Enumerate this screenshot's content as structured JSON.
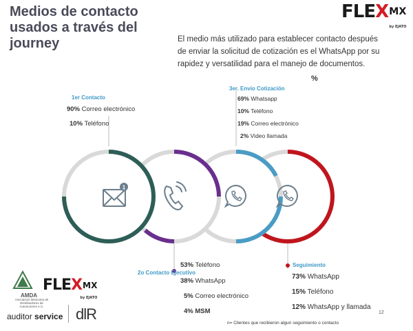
{
  "title": "Medios de contacto usados a través del journey",
  "intro": "El medio más utilizado para establecer contacto después de enviar la solicitud de cotización es el WhatsApp por su rapidez y versatilidad para el manejo de documentos.",
  "percent_sign": "%",
  "brand": {
    "fle": "FLE",
    "x": "X",
    "mx": "MX",
    "by": "by EJATO"
  },
  "stages": [
    {
      "label": "1er Contacto",
      "color": "#2d5e57",
      "items": [
        {
          "pct": "90%",
          "text": " Correo electrónico"
        },
        {
          "pct": "10%",
          "text": " Teléfono"
        }
      ]
    },
    {
      "label": "2o Contacto Ejecutivo",
      "color": "#6a2f8e",
      "items": [
        {
          "pct": "53%",
          "text": " Teléfono"
        },
        {
          "pct": "38%",
          "text": " WhatsApp"
        },
        {
          "pct": "5%",
          "text": " Correo electrónico"
        },
        {
          "pct": "4%",
          "text": "  MSM"
        }
      ]
    },
    {
      "label": "3er. Envío Cotización",
      "color": "#4a9cc4",
      "items": [
        {
          "pct": "69%",
          "text": " Whatsapp"
        },
        {
          "pct": "10%",
          "text": " Teléfono"
        },
        {
          "pct": "19%",
          "text": " Correo electrónico"
        },
        {
          "pct": "2%",
          "text": "  Video llamada"
        }
      ]
    },
    {
      "label": "Seguimiento",
      "color": "#c0151d",
      "items": [
        {
          "pct": "73%",
          "text": " WhatsApp"
        },
        {
          "pct": "15%",
          "text": " Teléfono"
        },
        {
          "pct": "12%",
          "text": " WhatsApp y llamada"
        }
      ]
    }
  ],
  "footnote": "n= Clientes que recibieron algun seguimiento o contacto",
  "page_number": "12",
  "amda": {
    "name": "AMDA",
    "subtitle": "Asociación Mexicana de Distribuidores de Automotores A.C."
  },
  "auditor": {
    "pre": "auditor ",
    "bold": "service"
  },
  "dlr": "dlR",
  "colors": {
    "teal_label": "#3e99c6",
    "gray_ring": "#d9d9d9",
    "brand_red": "#d31c24"
  }
}
